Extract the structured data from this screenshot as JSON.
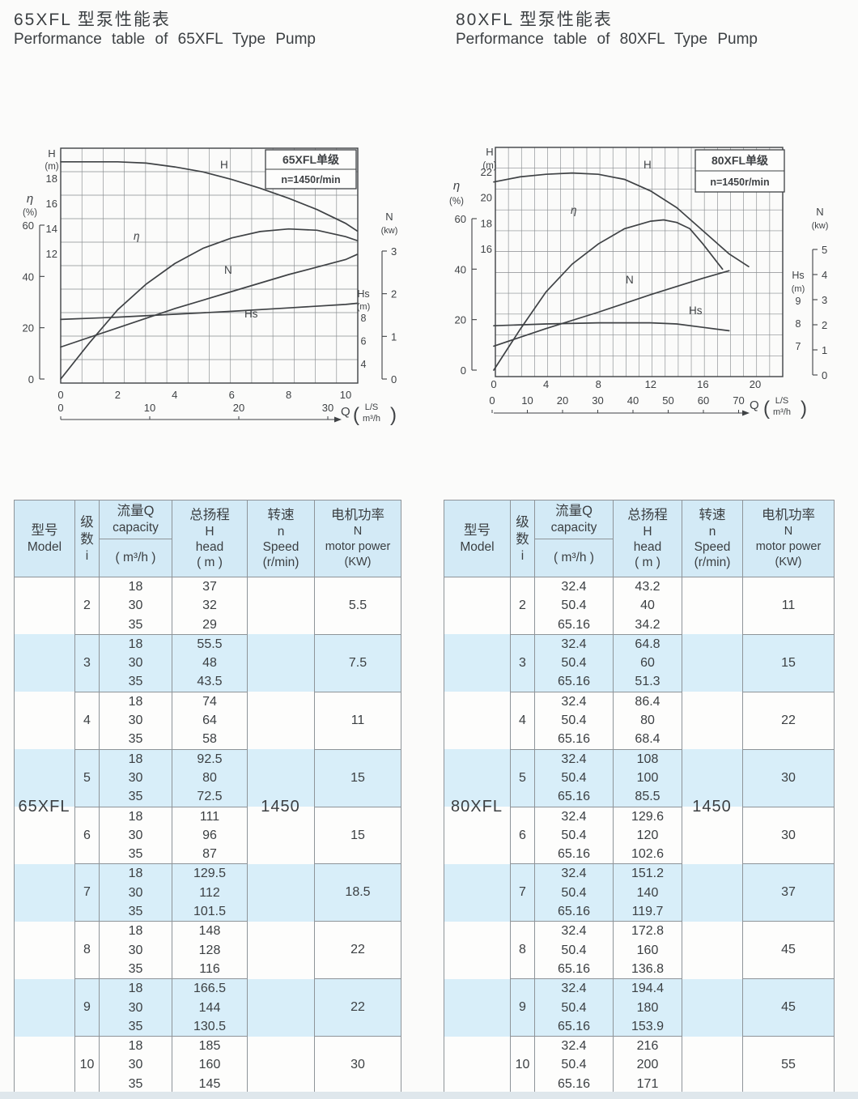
{
  "sections": [
    {
      "title_cn": "65XFL 型泵性能表",
      "title_en": "Performance table of 65XFL Type Pump"
    },
    {
      "title_cn": "80XFL 型泵性能表",
      "title_en": "Performance table of 80XFL Type Pump"
    }
  ],
  "colors": {
    "stripe": "#d8eef9",
    "header_bg": "#d3eaf6",
    "border": "#8e9499",
    "text": "#3b3f42",
    "chart_ink": "#3f4245"
  },
  "chart_data": [
    {
      "type": "line",
      "title": "65XFL单级",
      "subtitle": "n=1450r/min",
      "x_axis": {
        "label": "Q",
        "unit_top": "L/S",
        "unit_bottom": "m³/h",
        "ls_ticks": [
          0,
          2,
          4,
          6,
          8,
          10
        ],
        "m3h_ticks": [
          0,
          10,
          20,
          30
        ],
        "xlim_ls": [
          0,
          10.4
        ]
      },
      "y_axes": {
        "H": {
          "label": "H",
          "unit": "(m)",
          "ticks": [
            18,
            16,
            14,
            12
          ]
        },
        "eta": {
          "label": "η",
          "unit": "(%)",
          "ticks": [
            60,
            40,
            20,
            0
          ]
        },
        "N": {
          "label": "N",
          "unit": "(kw)",
          "ticks": [
            3,
            2,
            1,
            0
          ]
        },
        "Hs": {
          "label": "Hs",
          "unit": "(m)",
          "ticks": [
            8,
            6,
            4
          ]
        }
      },
      "series": [
        {
          "name": "H",
          "axis": "H",
          "points": [
            [
              0,
              19.3
            ],
            [
              2,
              19.3
            ],
            [
              3,
              19.2
            ],
            [
              4,
              18.9
            ],
            [
              5,
              18.5
            ],
            [
              6,
              17.9
            ],
            [
              7,
              17.2
            ],
            [
              8,
              16.4
            ],
            [
              9,
              15.5
            ],
            [
              10,
              14.4
            ],
            [
              10.4,
              13.8
            ]
          ]
        },
        {
          "name": "η",
          "axis": "eta",
          "points": [
            [
              0,
              0
            ],
            [
              1,
              14
            ],
            [
              2,
              27
            ],
            [
              3,
              37
            ],
            [
              4,
              45
            ],
            [
              5,
              51
            ],
            [
              6,
              55
            ],
            [
              7,
              57.5
            ],
            [
              8,
              58.5
            ],
            [
              9,
              58
            ],
            [
              10,
              55.5
            ],
            [
              10.4,
              54
            ]
          ]
        },
        {
          "name": "N",
          "axis": "N",
          "points": [
            [
              0,
              0.75
            ],
            [
              2,
              1.2
            ],
            [
              4,
              1.65
            ],
            [
              6,
              2.05
            ],
            [
              8,
              2.45
            ],
            [
              10,
              2.8
            ],
            [
              10.4,
              2.92
            ]
          ]
        },
        {
          "name": "Hs",
          "axis": "Hs",
          "points": [
            [
              0,
              7.9
            ],
            [
              2,
              8.1
            ],
            [
              4,
              8.35
            ],
            [
              6,
              8.6
            ],
            [
              8,
              8.9
            ],
            [
              10,
              9.2
            ],
            [
              10.4,
              9.3
            ]
          ]
        }
      ]
    },
    {
      "type": "line",
      "title": "80XFL单级",
      "subtitle": "n=1450r/min",
      "x_axis": {
        "label": "Q",
        "unit_top": "L/S",
        "unit_bottom": "m³/h",
        "ls_ticks": [
          0,
          4,
          8,
          12,
          16,
          20
        ],
        "m3h_ticks": [
          0,
          10,
          20,
          30,
          40,
          50,
          60,
          70
        ],
        "xlim_ls": [
          0,
          19.7
        ]
      },
      "y_axes": {
        "H": {
          "label": "H",
          "unit": "(m)",
          "ticks": [
            22,
            20,
            18,
            16
          ]
        },
        "eta": {
          "label": "η",
          "unit": "(%)",
          "ticks": [
            60,
            40,
            20,
            0
          ]
        },
        "N": {
          "label": "N",
          "unit": "(kw)",
          "ticks": [
            5,
            4,
            3,
            2,
            1,
            0
          ]
        },
        "Hs": {
          "label": "Hs",
          "unit": "(m)",
          "ticks": [
            9,
            8,
            7
          ]
        }
      },
      "series": [
        {
          "name": "H",
          "axis": "H",
          "points": [
            [
              0,
              21.2
            ],
            [
              2,
              21.6
            ],
            [
              4,
              21.8
            ],
            [
              6,
              21.9
            ],
            [
              8,
              21.8
            ],
            [
              10,
              21.4
            ],
            [
              12,
              20.5
            ],
            [
              14,
              19.2
            ],
            [
              16,
              17.4
            ],
            [
              18,
              15.6
            ],
            [
              19.5,
              14.6
            ]
          ]
        },
        {
          "name": "η",
          "axis": "eta",
          "points": [
            [
              0,
              0
            ],
            [
              2,
              16
            ],
            [
              4,
              31
            ],
            [
              6,
              42
            ],
            [
              8,
              50
            ],
            [
              10,
              56
            ],
            [
              12,
              59
            ],
            [
              13,
              59.5
            ],
            [
              14,
              58.5
            ],
            [
              15,
              56
            ],
            [
              16,
              50
            ],
            [
              17.5,
              40
            ]
          ]
        },
        {
          "name": "N",
          "axis": "N",
          "points": [
            [
              0,
              1.15
            ],
            [
              4,
              1.85
            ],
            [
              8,
              2.5
            ],
            [
              12,
              3.2
            ],
            [
              16,
              3.85
            ],
            [
              18,
              4.15
            ]
          ]
        },
        {
          "name": "Hs",
          "axis": "Hs",
          "points": [
            [
              0,
              7.92
            ],
            [
              4,
              8.0
            ],
            [
              8,
              8.05
            ],
            [
              12,
              8.05
            ],
            [
              14,
              8.0
            ],
            [
              16,
              7.85
            ],
            [
              18,
              7.7
            ]
          ]
        }
      ]
    }
  ],
  "tables": [
    {
      "model": "65XFL",
      "speed": "1450",
      "header": {
        "model_cn": "型号",
        "model_en": "Model",
        "stage_cn": "级数",
        "stage_en": "i",
        "capacity_cn": "流量Q",
        "capacity_en": "capacity",
        "capacity_unit": "( m³/h )",
        "head_cn": "总扬程",
        "head_sym": "H",
        "head_en": "head",
        "head_unit": "( m )",
        "speed_cn": "转速",
        "speed_sym": "n",
        "speed_en": "Speed",
        "speed_unit": "(r/min)",
        "power_cn": "电机功率",
        "power_sym": "N",
        "power_en": "motor power",
        "power_unit": "(KW)"
      },
      "groups": [
        {
          "i": "2",
          "q": [
            "18",
            "30",
            "35"
          ],
          "h": [
            "37",
            "32",
            "29"
          ],
          "power": "5.5"
        },
        {
          "i": "3",
          "q": [
            "18",
            "30",
            "35"
          ],
          "h": [
            "55.5",
            "48",
            "43.5"
          ],
          "power": "7.5"
        },
        {
          "i": "4",
          "q": [
            "18",
            "30",
            "35"
          ],
          "h": [
            "74",
            "64",
            "58"
          ],
          "power": "11"
        },
        {
          "i": "5",
          "q": [
            "18",
            "30",
            "35"
          ],
          "h": [
            "92.5",
            "80",
            "72.5"
          ],
          "power": "15"
        },
        {
          "i": "6",
          "q": [
            "18",
            "30",
            "35"
          ],
          "h": [
            "111",
            "96",
            "87"
          ],
          "power": "15"
        },
        {
          "i": "7",
          "q": [
            "18",
            "30",
            "35"
          ],
          "h": [
            "129.5",
            "112",
            "101.5"
          ],
          "power": "18.5"
        },
        {
          "i": "8",
          "q": [
            "18",
            "30",
            "35"
          ],
          "h": [
            "148",
            "128",
            "116"
          ],
          "power": "22"
        },
        {
          "i": "9",
          "q": [
            "18",
            "30",
            "35"
          ],
          "h": [
            "166.5",
            "144",
            "130.5"
          ],
          "power": "22"
        },
        {
          "i": "10",
          "q": [
            "18",
            "30",
            "35"
          ],
          "h": [
            "185",
            "160",
            "145"
          ],
          "power": "30"
        }
      ]
    },
    {
      "model": "80XFL",
      "speed": "1450",
      "header": {
        "model_cn": "型号",
        "model_en": "Model",
        "stage_cn": "级数",
        "stage_en": "i",
        "capacity_cn": "流量Q",
        "capacity_en": "capacity",
        "capacity_unit": "( m³/h )",
        "head_cn": "总扬程",
        "head_sym": "H",
        "head_en": "head",
        "head_unit": "( m )",
        "speed_cn": "转速",
        "speed_sym": "n",
        "speed_en": "Speed",
        "speed_unit": "(r/min)",
        "power_cn": "电机功率",
        "power_sym": "N",
        "power_en": "motor power",
        "power_unit": "(KW)"
      },
      "groups": [
        {
          "i": "2",
          "q": [
            "32.4",
            "50.4",
            "65.16"
          ],
          "h": [
            "43.2",
            "40",
            "34.2"
          ],
          "power": "11"
        },
        {
          "i": "3",
          "q": [
            "32.4",
            "50.4",
            "65.16"
          ],
          "h": [
            "64.8",
            "60",
            "51.3"
          ],
          "power": "15"
        },
        {
          "i": "4",
          "q": [
            "32.4",
            "50.4",
            "65.16"
          ],
          "h": [
            "86.4",
            "80",
            "68.4"
          ],
          "power": "22"
        },
        {
          "i": "5",
          "q": [
            "32.4",
            "50.4",
            "65.16"
          ],
          "h": [
            "108",
            "100",
            "85.5"
          ],
          "power": "30"
        },
        {
          "i": "6",
          "q": [
            "32.4",
            "50.4",
            "65.16"
          ],
          "h": [
            "129.6",
            "120",
            "102.6"
          ],
          "power": "30"
        },
        {
          "i": "7",
          "q": [
            "32.4",
            "50.4",
            "65.16"
          ],
          "h": [
            "151.2",
            "140",
            "119.7"
          ],
          "power": "37"
        },
        {
          "i": "8",
          "q": [
            "32.4",
            "50.4",
            "65.16"
          ],
          "h": [
            "172.8",
            "160",
            "136.8"
          ],
          "power": "45"
        },
        {
          "i": "9",
          "q": [
            "32.4",
            "50.4",
            "65.16"
          ],
          "h": [
            "194.4",
            "180",
            "153.9"
          ],
          "power": "45"
        },
        {
          "i": "10",
          "q": [
            "32.4",
            "50.4",
            "65.16"
          ],
          "h": [
            "216",
            "200",
            "171"
          ],
          "power": "55"
        }
      ]
    }
  ]
}
